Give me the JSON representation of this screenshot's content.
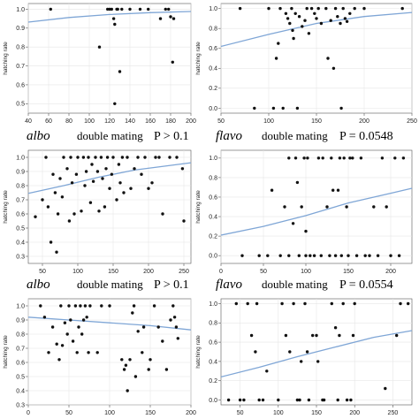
{
  "chart_data": [
    {
      "type": "scatter",
      "ylabel": "hatching rate",
      "xlim": [
        40,
        200
      ],
      "ylim": [
        0.45,
        1.03
      ],
      "xticks": [
        40,
        60,
        80,
        100,
        120,
        140,
        160,
        180,
        200
      ],
      "yticks": [
        0.5,
        0.6,
        0.7,
        0.8,
        0.9,
        1.0
      ],
      "grid": true,
      "points": [
        [
          62,
          1.0
        ],
        [
          110,
          0.8
        ],
        [
          118,
          1.0
        ],
        [
          120,
          1.0
        ],
        [
          122,
          1.0
        ],
        [
          124,
          0.95
        ],
        [
          125,
          0.92
        ],
        [
          125,
          0.5
        ],
        [
          127,
          1.0
        ],
        [
          128,
          1.0
        ],
        [
          130,
          0.67
        ],
        [
          132,
          1.0
        ],
        [
          140,
          1.0
        ],
        [
          150,
          1.0
        ],
        [
          158,
          1.0
        ],
        [
          170,
          0.95
        ],
        [
          175,
          1.0
        ],
        [
          178,
          1.0
        ],
        [
          180,
          0.96
        ],
        [
          182,
          0.72
        ],
        [
          183,
          0.95
        ]
      ],
      "fit": [
        [
          40,
          0.932
        ],
        [
          80,
          0.956
        ],
        [
          120,
          0.972
        ],
        [
          160,
          0.982
        ],
        [
          200,
          0.988
        ]
      ]
    },
    {
      "type": "scatter",
      "ylabel": "hatching rate",
      "xlim": [
        50,
        250
      ],
      "ylim": [
        -0.05,
        1.05
      ],
      "xticks": [
        50,
        100,
        150,
        200,
        250
      ],
      "yticks": [
        0.0,
        0.2,
        0.4,
        0.6,
        0.8,
        1.0
      ],
      "grid": true,
      "points": [
        [
          70,
          1.0
        ],
        [
          85,
          0.0
        ],
        [
          100,
          1.0
        ],
        [
          105,
          0.0
        ],
        [
          108,
          0.5
        ],
        [
          110,
          0.65
        ],
        [
          112,
          1.0
        ],
        [
          115,
          0.0
        ],
        [
          118,
          0.95
        ],
        [
          120,
          0.9
        ],
        [
          122,
          0.85
        ],
        [
          124,
          1.0
        ],
        [
          125,
          0.78
        ],
        [
          126,
          0.7
        ],
        [
          128,
          0.95
        ],
        [
          130,
          0.0
        ],
        [
          132,
          0.92
        ],
        [
          135,
          0.82
        ],
        [
          138,
          0.88
        ],
        [
          140,
          1.0
        ],
        [
          142,
          0.75
        ],
        [
          145,
          1.0
        ],
        [
          148,
          0.95
        ],
        [
          150,
          0.9
        ],
        [
          152,
          1.0
        ],
        [
          155,
          0.85
        ],
        [
          160,
          1.0
        ],
        [
          162,
          0.5
        ],
        [
          165,
          0.88
        ],
        [
          168,
          0.4
        ],
        [
          170,
          1.0
        ],
        [
          172,
          0.92
        ],
        [
          175,
          0.85
        ],
        [
          176,
          0.0
        ],
        [
          178,
          1.0
        ],
        [
          180,
          0.9
        ],
        [
          182,
          0.87
        ],
        [
          185,
          0.95
        ],
        [
          190,
          1.0
        ],
        [
          200,
          1.0
        ],
        [
          240,
          1.0
        ]
      ],
      "fit": [
        [
          50,
          0.62
        ],
        [
          100,
          0.74
        ],
        [
          150,
          0.85
        ],
        [
          200,
          0.92
        ],
        [
          250,
          0.96
        ]
      ]
    },
    {
      "type": "scatter",
      "ylabel": "hatching rate",
      "xlim": [
        30,
        260
      ],
      "ylim": [
        0.25,
        1.05
      ],
      "xticks": [
        50,
        100,
        150,
        200,
        250
      ],
      "yticks": [
        0.3,
        0.4,
        0.5,
        0.6,
        0.7,
        0.8,
        0.9,
        1.0
      ],
      "grid": true,
      "points": [
        [
          40,
          0.58
        ],
        [
          50,
          0.7
        ],
        [
          55,
          1.0
        ],
        [
          58,
          0.65
        ],
        [
          62,
          0.4
        ],
        [
          65,
          0.88
        ],
        [
          68,
          0.75
        ],
        [
          70,
          0.33
        ],
        [
          72,
          0.6
        ],
        [
          75,
          0.85
        ],
        [
          78,
          0.72
        ],
        [
          80,
          1.0
        ],
        [
          85,
          0.92
        ],
        [
          88,
          0.55
        ],
        [
          90,
          1.0
        ],
        [
          92,
          0.82
        ],
        [
          95,
          0.6
        ],
        [
          98,
          0.88
        ],
        [
          100,
          1.0
        ],
        [
          105,
          0.62
        ],
        [
          108,
          1.0
        ],
        [
          110,
          0.8
        ],
        [
          112,
          0.9
        ],
        [
          115,
          1.0
        ],
        [
          118,
          0.68
        ],
        [
          120,
          0.95
        ],
        [
          122,
          0.83
        ],
        [
          125,
          1.0
        ],
        [
          128,
          0.9
        ],
        [
          130,
          0.62
        ],
        [
          133,
          1.0
        ],
        [
          135,
          0.85
        ],
        [
          138,
          0.65
        ],
        [
          140,
          0.92
        ],
        [
          142,
          1.0
        ],
        [
          145,
          0.78
        ],
        [
          148,
          0.88
        ],
        [
          150,
          1.0
        ],
        [
          155,
          0.7
        ],
        [
          158,
          0.95
        ],
        [
          160,
          0.82
        ],
        [
          163,
          1.0
        ],
        [
          165,
          0.75
        ],
        [
          170,
          1.0
        ],
        [
          175,
          0.78
        ],
        [
          180,
          0.92
        ],
        [
          185,
          1.0
        ],
        [
          190,
          0.88
        ],
        [
          195,
          1.0
        ],
        [
          200,
          0.78
        ],
        [
          205,
          0.82
        ],
        [
          210,
          1.0
        ],
        [
          215,
          1.0
        ],
        [
          220,
          0.6
        ],
        [
          230,
          1.0
        ],
        [
          240,
          1.0
        ],
        [
          248,
          0.92
        ],
        [
          250,
          0.55
        ]
      ],
      "fit": [
        [
          30,
          0.745
        ],
        [
          80,
          0.8
        ],
        [
          130,
          0.86
        ],
        [
          180,
          0.91
        ],
        [
          260,
          0.962
        ]
      ]
    },
    {
      "type": "scatter",
      "ylabel": "hatching rate",
      "xlim": [
        0,
        225
      ],
      "ylim": [
        -0.08,
        1.08
      ],
      "xticks": [
        0,
        50,
        100,
        150,
        200
      ],
      "yticks": [
        0.0,
        0.2,
        0.4,
        0.6,
        0.8,
        1.0
      ],
      "grid": true,
      "points": [
        [
          25,
          0.0
        ],
        [
          45,
          0.0
        ],
        [
          55,
          0.0
        ],
        [
          60,
          0.67
        ],
        [
          70,
          0.0
        ],
        [
          75,
          0.5
        ],
        [
          80,
          1.0
        ],
        [
          80,
          0.0
        ],
        [
          85,
          0.33
        ],
        [
          88,
          1.0
        ],
        [
          90,
          0.75
        ],
        [
          92,
          0.0
        ],
        [
          95,
          0.5
        ],
        [
          98,
          1.0
        ],
        [
          100,
          0.25
        ],
        [
          100,
          0.0
        ],
        [
          102,
          1.0
        ],
        [
          105,
          0.0
        ],
        [
          110,
          0.0
        ],
        [
          115,
          1.0
        ],
        [
          118,
          0.0
        ],
        [
          120,
          1.0
        ],
        [
          125,
          0.5
        ],
        [
          128,
          0.0
        ],
        [
          130,
          1.0
        ],
        [
          132,
          0.67
        ],
        [
          135,
          0.0
        ],
        [
          138,
          0.67
        ],
        [
          140,
          1.0
        ],
        [
          142,
          0.0
        ],
        [
          145,
          1.0
        ],
        [
          148,
          0.5
        ],
        [
          150,
          0.0
        ],
        [
          152,
          1.0
        ],
        [
          155,
          1.0
        ],
        [
          160,
          0.0
        ],
        [
          165,
          1.0
        ],
        [
          170,
          0.0
        ],
        [
          175,
          0.0
        ],
        [
          180,
          0.5
        ],
        [
          185,
          0.0
        ],
        [
          190,
          1.0
        ],
        [
          195,
          0.5
        ],
        [
          200,
          0.0
        ],
        [
          205,
          1.0
        ],
        [
          210,
          0.0
        ],
        [
          215,
          1.0
        ]
      ],
      "fit": [
        [
          0,
          0.21
        ],
        [
          50,
          0.3
        ],
        [
          100,
          0.41
        ],
        [
          150,
          0.54
        ],
        [
          200,
          0.64
        ],
        [
          225,
          0.69
        ]
      ]
    },
    {
      "type": "scatter",
      "ylabel": "hatching rate",
      "xlim": [
        0,
        200
      ],
      "ylim": [
        0.3,
        1.05
      ],
      "xticks": [
        0,
        50,
        100,
        150,
        200
      ],
      "yticks": [
        0.3,
        0.4,
        0.5,
        0.6,
        0.7,
        0.8,
        0.9,
        1.0
      ],
      "grid": true,
      "points": [
        [
          15,
          1.0
        ],
        [
          20,
          0.92
        ],
        [
          25,
          0.67
        ],
        [
          30,
          0.85
        ],
        [
          35,
          0.73
        ],
        [
          38,
          0.62
        ],
        [
          40,
          1.0
        ],
        [
          42,
          0.72
        ],
        [
          45,
          0.88
        ],
        [
          48,
          0.8
        ],
        [
          50,
          1.0
        ],
        [
          52,
          0.9
        ],
        [
          55,
          0.75
        ],
        [
          58,
          1.0
        ],
        [
          60,
          0.67
        ],
        [
          62,
          0.85
        ],
        [
          64,
          1.0
        ],
        [
          66,
          0.8
        ],
        [
          68,
          0.9
        ],
        [
          70,
          1.0
        ],
        [
          72,
          0.92
        ],
        [
          74,
          0.67
        ],
        [
          76,
          1.0
        ],
        [
          85,
          0.67
        ],
        [
          90,
          1.0
        ],
        [
          100,
          1.0
        ],
        [
          115,
          0.62
        ],
        [
          118,
          0.55
        ],
        [
          120,
          0.58
        ],
        [
          122,
          0.4
        ],
        [
          125,
          0.62
        ],
        [
          128,
          0.95
        ],
        [
          130,
          1.0
        ],
        [
          132,
          0.5
        ],
        [
          135,
          0.82
        ],
        [
          140,
          0.67
        ],
        [
          142,
          0.85
        ],
        [
          148,
          0.55
        ],
        [
          150,
          0.62
        ],
        [
          155,
          1.0
        ],
        [
          160,
          0.85
        ],
        [
          165,
          0.75
        ],
        [
          170,
          0.55
        ],
        [
          175,
          0.9
        ],
        [
          178,
          1.0
        ],
        [
          180,
          0.92
        ],
        [
          182,
          0.85
        ],
        [
          184,
          0.77
        ]
      ],
      "fit": [
        [
          0,
          0.92
        ],
        [
          50,
          0.9
        ],
        [
          100,
          0.88
        ],
        [
          150,
          0.86
        ],
        [
          200,
          0.83
        ]
      ]
    },
    {
      "type": "scatter",
      "ylabel": "hatching rate",
      "xlim": [
        25,
        275
      ],
      "ylim": [
        -0.05,
        1.05
      ],
      "xticks": [
        50,
        100,
        150,
        200,
        250
      ],
      "yticks": [
        0.0,
        0.2,
        0.4,
        0.6,
        0.8,
        1.0
      ],
      "grid": true,
      "points": [
        [
          35,
          0.0
        ],
        [
          45,
          1.0
        ],
        [
          50,
          0.0
        ],
        [
          55,
          0.0
        ],
        [
          60,
          1.0
        ],
        [
          65,
          0.67
        ],
        [
          70,
          0.5
        ],
        [
          72,
          1.0
        ],
        [
          75,
          0.0
        ],
        [
          80,
          0.0
        ],
        [
          85,
          0.3
        ],
        [
          100,
          0.0
        ],
        [
          105,
          1.0
        ],
        [
          110,
          0.67
        ],
        [
          115,
          0.5
        ],
        [
          120,
          1.0
        ],
        [
          125,
          0.0
        ],
        [
          128,
          0.0
        ],
        [
          130,
          0.4
        ],
        [
          135,
          1.0
        ],
        [
          138,
          0.5
        ],
        [
          140,
          0.0
        ],
        [
          145,
          0.67
        ],
        [
          150,
          0.67
        ],
        [
          152,
          0.4
        ],
        [
          158,
          0.0
        ],
        [
          160,
          0.0
        ],
        [
          170,
          1.0
        ],
        [
          175,
          0.75
        ],
        [
          178,
          0.0
        ],
        [
          180,
          0.67
        ],
        [
          185,
          1.0
        ],
        [
          190,
          0.0
        ],
        [
          195,
          0.0
        ],
        [
          198,
          0.67
        ],
        [
          200,
          1.0
        ],
        [
          240,
          0.12
        ],
        [
          255,
          0.67
        ],
        [
          260,
          1.0
        ],
        [
          270,
          1.0
        ]
      ],
      "fit": [
        [
          25,
          0.24
        ],
        [
          75,
          0.34
        ],
        [
          125,
          0.45
        ],
        [
          175,
          0.55
        ],
        [
          225,
          0.65
        ],
        [
          275,
          0.72
        ]
      ]
    }
  ],
  "captions": [
    {
      "species": "albo",
      "label": "double mating",
      "p": "P > 0.1"
    },
    {
      "species": "flavo",
      "label": "double mating",
      "p": "P = 0.0548"
    },
    {
      "species": "albo",
      "label": "double mating",
      "p": "P > 0.1"
    },
    {
      "species": "flavo",
      "label": "double mating",
      "p": "P = 0.0554"
    }
  ],
  "colors": {
    "point": "#111111",
    "fit": "#7fa6d6",
    "grid": "#e6e6e6",
    "axis": "#555555"
  }
}
